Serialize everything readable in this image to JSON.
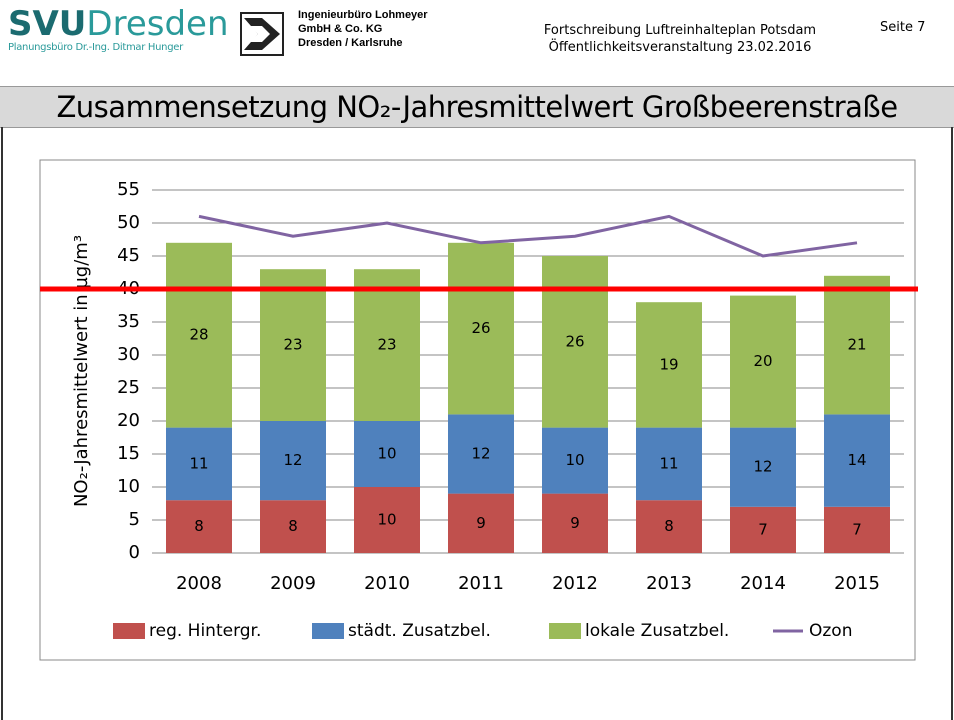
{
  "header": {
    "logo_brand": "SVU",
    "logo_name": "Dresden",
    "logo_sub": "Planungsbüro Dr.-Ing. Ditmar Hunger",
    "company": [
      "Ingenieurbüro Lohmeyer",
      "GmbH & Co. KG",
      "Dresden / Karlsruhe"
    ],
    "event": [
      "Fortschreibung Luftreinhalteplan Potsdam",
      "Öffentlichkeitsveranstaltung 23.02.2016"
    ],
    "page": "Seite 7"
  },
  "slide_title": "Zusammensetzung NO₂-Jahresmittelwert Großbeerenstraße",
  "chart_data": {
    "type": "bar",
    "stacked": true,
    "y_label": "NO₂-Jahresmittelwert in µg/m³",
    "categories": [
      "2008",
      "2009",
      "2010",
      "2011",
      "2012",
      "2013",
      "2014",
      "2015"
    ],
    "series": [
      {
        "name": "reg. Hintergr.",
        "color": "#c0504d",
        "values": [
          8,
          8,
          10,
          9,
          9,
          8,
          7,
          7
        ]
      },
      {
        "name": "städt. Zusatzbel.",
        "color": "#4f81bd",
        "values": [
          11,
          12,
          10,
          12,
          10,
          11,
          12,
          14
        ]
      },
      {
        "name": "lokale Zusatzbel.",
        "color": "#9bbb59",
        "values": [
          28,
          23,
          23,
          26,
          26,
          19,
          20,
          21
        ]
      },
      {
        "name": "Ozon",
        "color": "#8064a2",
        "type": "line",
        "values": [
          51,
          48,
          50,
          47,
          48,
          51,
          45,
          47
        ]
      }
    ],
    "reference_line": {
      "value": 40,
      "color": "#ff0000"
    },
    "ylim": [
      0,
      55
    ],
    "yticks": [
      0,
      5,
      10,
      15,
      20,
      25,
      30,
      35,
      40,
      45,
      50,
      55
    ],
    "grid": true,
    "legend": "bottom"
  }
}
